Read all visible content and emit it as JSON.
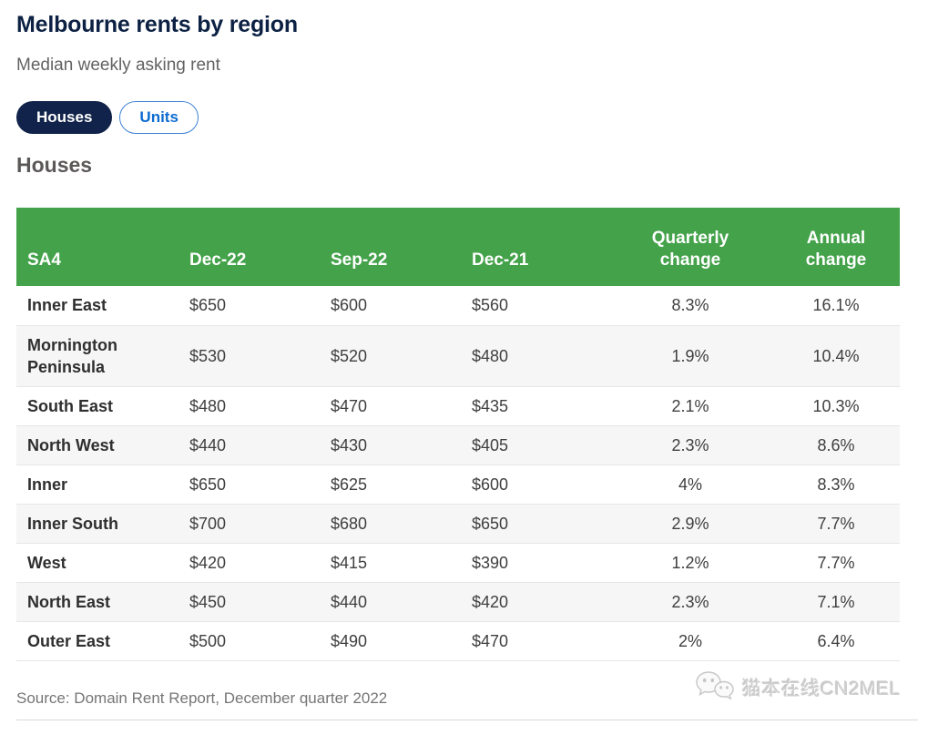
{
  "header": {
    "title": "Melbourne rents by region",
    "subtitle": "Median weekly asking rent"
  },
  "toggle": {
    "options": [
      {
        "label": "Houses",
        "active": true
      },
      {
        "label": "Units",
        "active": false
      }
    ]
  },
  "section": {
    "heading": "Houses"
  },
  "chart_data": {
    "type": "table",
    "title": "Melbourne rents by region",
    "subtitle": "Median weekly asking rent",
    "segment": "Houses",
    "columns": [
      "SA4",
      "Dec-22",
      "Sep-22",
      "Dec-21",
      "Quarterly change",
      "Annual change"
    ],
    "rows": [
      [
        "Inner East",
        "$650",
        "$600",
        "$560",
        "8.3%",
        "16.1%"
      ],
      [
        "Mornington Peninsula",
        "$530",
        "$520",
        "$480",
        "1.9%",
        "10.4%"
      ],
      [
        "South East",
        "$480",
        "$470",
        "$435",
        "2.1%",
        "10.3%"
      ],
      [
        "North West",
        "$440",
        "$430",
        "$405",
        "2.3%",
        "8.6%"
      ],
      [
        "Inner",
        "$650",
        "$625",
        "$600",
        "4%",
        "8.3%"
      ],
      [
        "Inner South",
        "$700",
        "$680",
        "$650",
        "2.9%",
        "7.7%"
      ],
      [
        "West",
        "$420",
        "$415",
        "$390",
        "1.2%",
        "7.7%"
      ],
      [
        "North East",
        "$450",
        "$440",
        "$420",
        "2.3%",
        "7.1%"
      ],
      [
        "Outer East",
        "$500",
        "$490",
        "$470",
        "2%",
        "6.4%"
      ]
    ]
  },
  "footer": {
    "source": "Source: Domain Rent Report, December quarter 2022"
  },
  "watermark": {
    "icon": "wechat-icon",
    "text": "猫本在线CN2MEL"
  },
  "colors": {
    "header_green": "#44A24A",
    "title_navy": "#0C2143",
    "active_pill_navy": "#11234A",
    "link_blue": "#0D6CD0",
    "row_alt_gray": "#F6F6F6"
  }
}
